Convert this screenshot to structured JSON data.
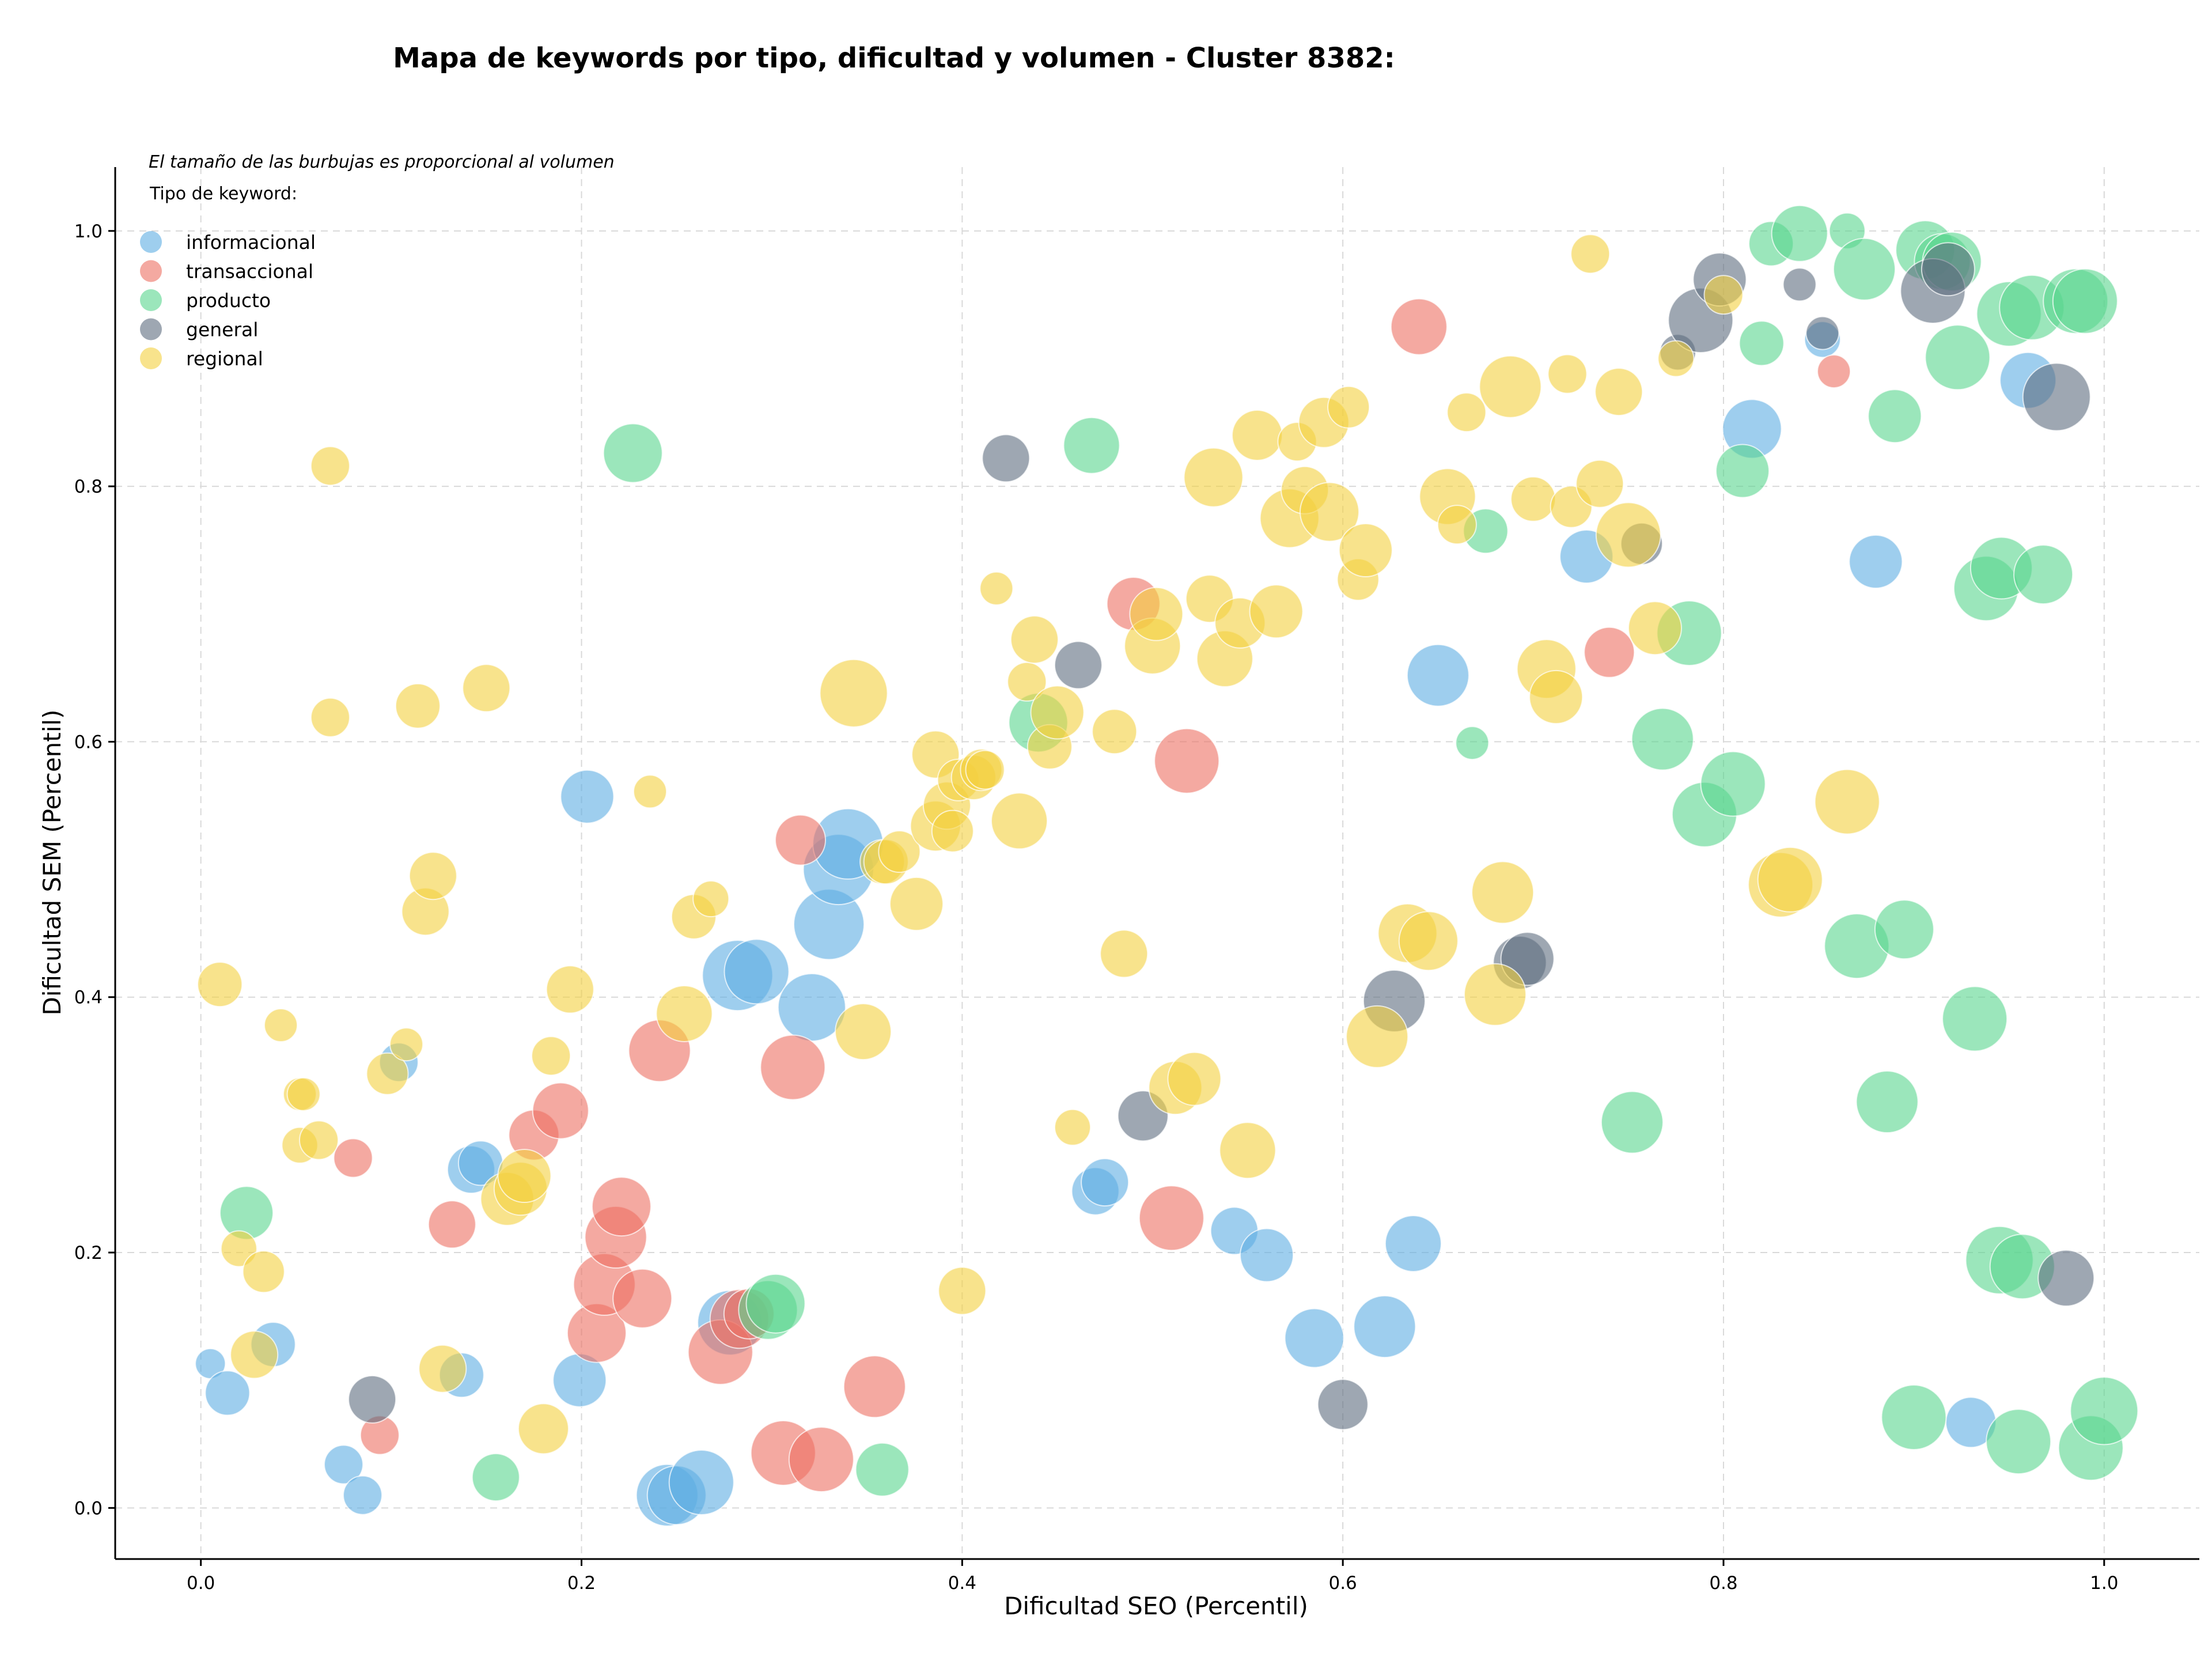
{
  "chart_data": {
    "type": "scatter",
    "title": "Mapa de keywords por tipo, dificultad y volumen - Cluster 8382:",
    "xlabel": "Dificultad SEO (Percentil)",
    "ylabel": "Dificultad SEM (Percentil)",
    "xlim": [
      -0.045,
      1.05
    ],
    "ylim": [
      -0.04,
      1.05
    ],
    "xticks": [
      "0.0",
      "0.2",
      "0.4",
      "0.6",
      "0.8",
      "1.0"
    ],
    "yticks": [
      "0.0",
      "0.2",
      "0.4",
      "0.6",
      "0.8",
      "1.0"
    ],
    "grid": true,
    "legend_placement": "top-left",
    "size_note": "El tamaño de las burbujas es proporcional al volumen",
    "legend_title": "Tipo de keyword:",
    "series": [
      {
        "name": "informacional",
        "color": "#5DADE2",
        "points": [
          [
            0.005,
            0.113,
            0.2
          ],
          [
            0.014,
            0.09,
            0.45
          ],
          [
            0.038,
            0.128,
            0.45
          ],
          [
            0.075,
            0.034,
            0.35
          ],
          [
            0.085,
            0.01,
            0.35
          ],
          [
            0.104,
            0.349,
            0.35
          ],
          [
            0.137,
            0.104,
            0.45
          ],
          [
            0.142,
            0.265,
            0.5
          ],
          [
            0.147,
            0.27,
            0.45
          ],
          [
            0.199,
            0.1,
            0.6
          ],
          [
            0.203,
            0.557,
            0.6
          ],
          [
            0.245,
            0.01,
            0.75
          ],
          [
            0.25,
            0.01,
            0.7
          ],
          [
            0.263,
            0.02,
            0.8
          ],
          [
            0.278,
            0.145,
            0.8
          ],
          [
            0.282,
            0.417,
            0.9
          ],
          [
            0.292,
            0.42,
            0.8
          ],
          [
            0.321,
            0.392,
            0.85
          ],
          [
            0.33,
            0.457,
            0.9
          ],
          [
            0.335,
            0.5,
            0.9
          ],
          [
            0.34,
            0.52,
            0.9
          ],
          [
            0.47,
            0.248,
            0.5
          ],
          [
            0.475,
            0.255,
            0.5
          ],
          [
            0.543,
            0.217,
            0.5
          ],
          [
            0.56,
            0.198,
            0.6
          ],
          [
            0.585,
            0.133,
            0.7
          ],
          [
            0.622,
            0.142,
            0.75
          ],
          [
            0.637,
            0.207,
            0.65
          ],
          [
            0.65,
            0.652,
            0.75
          ],
          [
            0.728,
            0.745,
            0.6
          ],
          [
            0.815,
            0.845,
            0.7
          ],
          [
            0.852,
            0.915,
            0.3
          ],
          [
            0.88,
            0.741,
            0.6
          ],
          [
            0.93,
            0.067,
            0.55
          ],
          [
            0.96,
            0.883,
            0.65
          ]
        ]
      },
      {
        "name": "transaccional",
        "color": "#EC7063",
        "points": [
          [
            0.08,
            0.274,
            0.35
          ],
          [
            0.094,
            0.057,
            0.35
          ],
          [
            0.132,
            0.222,
            0.5
          ],
          [
            0.175,
            0.292,
            0.55
          ],
          [
            0.189,
            0.311,
            0.65
          ],
          [
            0.208,
            0.137,
            0.7
          ],
          [
            0.212,
            0.175,
            0.75
          ],
          [
            0.218,
            0.212,
            0.75
          ],
          [
            0.221,
            0.236,
            0.7
          ],
          [
            0.232,
            0.164,
            0.7
          ],
          [
            0.241,
            0.358,
            0.75
          ],
          [
            0.273,
            0.122,
            0.8
          ],
          [
            0.283,
            0.148,
            0.7
          ],
          [
            0.288,
            0.152,
            0.55
          ],
          [
            0.306,
            0.043,
            0.8
          ],
          [
            0.311,
            0.345,
            0.8
          ],
          [
            0.315,
            0.523,
            0.55
          ],
          [
            0.326,
            0.038,
            0.8
          ],
          [
            0.354,
            0.095,
            0.75
          ],
          [
            0.49,
            0.708,
            0.6
          ],
          [
            0.518,
            0.585,
            0.8
          ],
          [
            0.51,
            0.227,
            0.8
          ],
          [
            0.64,
            0.925,
            0.65
          ],
          [
            0.74,
            0.67,
            0.55
          ],
          [
            0.858,
            0.89,
            0.25
          ]
        ]
      },
      {
        "name": "producto",
        "color": "#58D68D",
        "points": [
          [
            0.024,
            0.231,
            0.6
          ],
          [
            0.155,
            0.024,
            0.5
          ],
          [
            0.227,
            0.826,
            0.7
          ],
          [
            0.298,
            0.155,
            0.7
          ],
          [
            0.302,
            0.16,
            0.7
          ],
          [
            0.358,
            0.03,
            0.6
          ],
          [
            0.44,
            0.615,
            0.7
          ],
          [
            0.468,
            0.832,
            0.65
          ],
          [
            0.668,
            0.599,
            0.25
          ],
          [
            0.675,
            0.765,
            0.45
          ],
          [
            0.752,
            0.302,
            0.75
          ],
          [
            0.768,
            0.602,
            0.75
          ],
          [
            0.782,
            0.685,
            0.8
          ],
          [
            0.79,
            0.543,
            0.8
          ],
          [
            0.805,
            0.567,
            0.8
          ],
          [
            0.81,
            0.812,
            0.6
          ],
          [
            0.82,
            0.912,
            0.45
          ],
          [
            0.825,
            0.99,
            0.45
          ],
          [
            0.84,
            0.998,
            0.65
          ],
          [
            0.865,
            1.0,
            0.3
          ],
          [
            0.87,
            0.44,
            0.8
          ],
          [
            0.874,
            0.97,
            0.75
          ],
          [
            0.886,
            0.318,
            0.75
          ],
          [
            0.89,
            0.855,
            0.6
          ],
          [
            0.895,
            0.453,
            0.7
          ],
          [
            0.9,
            0.071,
            0.8
          ],
          [
            0.906,
            0.985,
            0.7
          ],
          [
            0.915,
            0.976,
            0.65
          ],
          [
            0.92,
            0.976,
            0.7
          ],
          [
            0.923,
            0.901,
            0.8
          ],
          [
            0.932,
            0.383,
            0.8
          ],
          [
            0.938,
            0.72,
            0.8
          ],
          [
            0.945,
            0.194,
            0.85
          ],
          [
            0.946,
            0.736,
            0.75
          ],
          [
            0.95,
            0.935,
            0.8
          ],
          [
            0.955,
            0.052,
            0.8
          ],
          [
            0.957,
            0.189,
            0.8
          ],
          [
            0.962,
            0.94,
            0.8
          ],
          [
            0.968,
            0.731,
            0.7
          ],
          [
            0.985,
            0.945,
            0.8
          ],
          [
            0.99,
            0.945,
            0.8
          ],
          [
            0.993,
            0.047,
            0.8
          ],
          [
            1.0,
            0.076,
            0.85
          ]
        ]
      },
      {
        "name": "general",
        "color": "#5D6D7E",
        "points": [
          [
            0.09,
            0.085,
            0.5
          ],
          [
            0.423,
            0.822,
            0.5
          ],
          [
            0.461,
            0.66,
            0.5
          ],
          [
            0.495,
            0.307,
            0.55
          ],
          [
            0.6,
            0.081,
            0.55
          ],
          [
            0.627,
            0.397,
            0.75
          ],
          [
            0.693,
            0.427,
            0.6
          ],
          [
            0.697,
            0.43,
            0.6
          ],
          [
            0.757,
            0.755,
            0.4
          ],
          [
            0.776,
            0.905,
            0.3
          ],
          [
            0.788,
            0.93,
            0.8
          ],
          [
            0.798,
            0.962,
            0.6
          ],
          [
            0.84,
            0.958,
            0.25
          ],
          [
            0.852,
            0.92,
            0.25
          ],
          [
            0.91,
            0.953,
            0.8
          ],
          [
            0.918,
            0.97,
            0.6
          ],
          [
            0.975,
            0.87,
            0.85
          ],
          [
            0.98,
            0.18,
            0.65
          ]
        ]
      },
      {
        "name": "regional",
        "color": "#F4D03F",
        "points": [
          [
            0.01,
            0.41,
            0.45
          ],
          [
            0.02,
            0.203,
            0.3
          ],
          [
            0.028,
            0.12,
            0.5
          ],
          [
            0.033,
            0.185,
            0.4
          ],
          [
            0.042,
            0.378,
            0.25
          ],
          [
            0.052,
            0.284,
            0.3
          ],
          [
            0.052,
            0.324,
            0.25
          ],
          [
            0.054,
            0.324,
            0.25
          ],
          [
            0.062,
            0.288,
            0.35
          ],
          [
            0.068,
            0.816,
            0.35
          ],
          [
            0.068,
            0.619,
            0.35
          ],
          [
            0.098,
            0.34,
            0.4
          ],
          [
            0.108,
            0.363,
            0.25
          ],
          [
            0.114,
            0.628,
            0.45
          ],
          [
            0.118,
            0.467,
            0.5
          ],
          [
            0.122,
            0.495,
            0.5
          ],
          [
            0.127,
            0.109,
            0.5
          ],
          [
            0.15,
            0.642,
            0.5
          ],
          [
            0.161,
            0.242,
            0.6
          ],
          [
            0.168,
            0.25,
            0.6
          ],
          [
            0.17,
            0.26,
            0.6
          ],
          [
            0.18,
            0.062,
            0.55
          ],
          [
            0.184,
            0.354,
            0.35
          ],
          [
            0.194,
            0.406,
            0.5
          ],
          [
            0.236,
            0.561,
            0.25
          ],
          [
            0.254,
            0.387,
            0.65
          ],
          [
            0.259,
            0.463,
            0.45
          ],
          [
            0.268,
            0.477,
            0.3
          ],
          [
            0.343,
            0.638,
            0.85
          ],
          [
            0.348,
            0.373,
            0.65
          ],
          [
            0.358,
            0.506,
            0.45
          ],
          [
            0.36,
            0.506,
            0.45
          ],
          [
            0.367,
            0.514,
            0.4
          ],
          [
            0.376,
            0.473,
            0.6
          ],
          [
            0.386,
            0.59,
            0.5
          ],
          [
            0.386,
            0.534,
            0.55
          ],
          [
            0.392,
            0.55,
            0.5
          ],
          [
            0.395,
            0.53,
            0.4
          ],
          [
            0.398,
            0.57,
            0.4
          ],
          [
            0.4,
            0.17,
            0.5
          ],
          [
            0.406,
            0.572,
            0.45
          ],
          [
            0.41,
            0.578,
            0.4
          ],
          [
            0.412,
            0.578,
            0.35
          ],
          [
            0.418,
            0.72,
            0.25
          ],
          [
            0.43,
            0.538,
            0.65
          ],
          [
            0.434,
            0.647,
            0.35
          ],
          [
            0.438,
            0.68,
            0.5
          ],
          [
            0.446,
            0.596,
            0.45
          ],
          [
            0.45,
            0.623,
            0.6
          ],
          [
            0.458,
            0.298,
            0.3
          ],
          [
            0.48,
            0.608,
            0.45
          ],
          [
            0.485,
            0.434,
            0.5
          ],
          [
            0.5,
            0.675,
            0.65
          ],
          [
            0.502,
            0.7,
            0.6
          ],
          [
            0.512,
            0.329,
            0.6
          ],
          [
            0.522,
            0.336,
            0.6
          ],
          [
            0.53,
            0.712,
            0.5
          ],
          [
            0.532,
            0.807,
            0.7
          ],
          [
            0.538,
            0.665,
            0.65
          ],
          [
            0.546,
            0.693,
            0.55
          ],
          [
            0.55,
            0.28,
            0.65
          ],
          [
            0.555,
            0.84,
            0.55
          ],
          [
            0.565,
            0.702,
            0.6
          ],
          [
            0.572,
            0.775,
            0.7
          ],
          [
            0.576,
            0.835,
            0.35
          ],
          [
            0.58,
            0.797,
            0.5
          ],
          [
            0.59,
            0.85,
            0.55
          ],
          [
            0.593,
            0.78,
            0.7
          ],
          [
            0.603,
            0.862,
            0.4
          ],
          [
            0.608,
            0.727,
            0.4
          ],
          [
            0.612,
            0.75,
            0.6
          ],
          [
            0.618,
            0.369,
            0.75
          ],
          [
            0.634,
            0.45,
            0.7
          ],
          [
            0.645,
            0.444,
            0.7
          ],
          [
            0.655,
            0.792,
            0.65
          ],
          [
            0.66,
            0.77,
            0.35
          ],
          [
            0.665,
            0.858,
            0.35
          ],
          [
            0.68,
            0.402,
            0.75
          ],
          [
            0.684,
            0.482,
            0.75
          ],
          [
            0.688,
            0.878,
            0.75
          ],
          [
            0.7,
            0.79,
            0.45
          ],
          [
            0.707,
            0.657,
            0.7
          ],
          [
            0.712,
            0.635,
            0.6
          ],
          [
            0.718,
            0.888,
            0.35
          ],
          [
            0.72,
            0.784,
            0.4
          ],
          [
            0.73,
            0.982,
            0.35
          ],
          [
            0.735,
            0.802,
            0.5
          ],
          [
            0.745,
            0.874,
            0.5
          ],
          [
            0.75,
            0.762,
            0.8
          ],
          [
            0.764,
            0.689,
            0.6
          ],
          [
            0.775,
            0.9,
            0.3
          ],
          [
            0.8,
            0.95,
            0.35
          ],
          [
            0.83,
            0.488,
            0.8
          ],
          [
            0.835,
            0.492,
            0.8
          ],
          [
            0.865,
            0.553,
            0.8
          ]
        ]
      }
    ]
  }
}
